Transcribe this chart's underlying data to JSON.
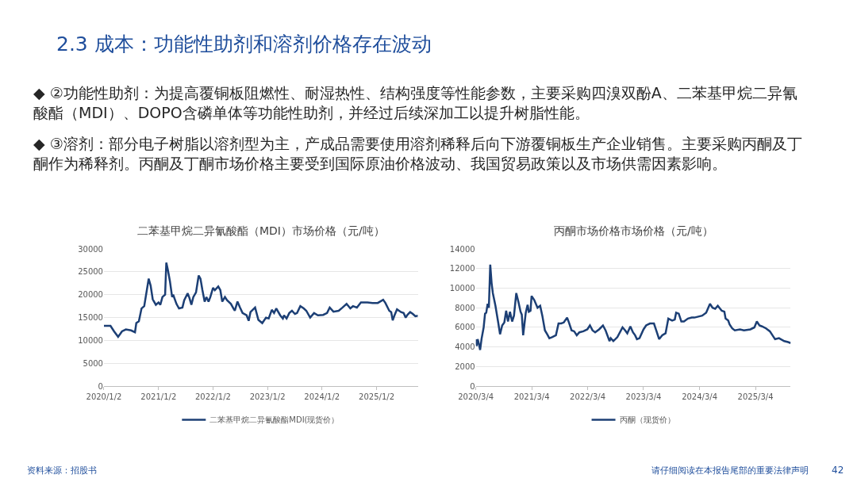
{
  "chart_data": [
    {
      "type": "other",
      "title": "2.3 成本：功能性助剂和溶剂价格存在波动",
      "annotations": [
        "◆ ②功能性助剂：为提高覆铜板阻燃性、耐湿热性、结构强度等性能参数，主要采购四溴双酚A、二苯基甲烷二异氰酸酯（MDI）、DOPO含磷单体等功能性助剂，并经过后续深加工以提升树脂性能。",
        "◆ ③溶剂：部分电子树脂以溶剂型为主，产成品需要使用溶剂稀释后向下游覆铜板生产企业销售。主要采购丙酮及丁酮作为稀释剂。丙酮及丁酮市场价格主要受到国际原油价格波动、我国贸易政策以及市场供需因素影响。",
        "资料来源：招股书",
        "请仔细阅读在本报告尾部的重要法律声明",
        "42"
      ]
    },
    {
      "type": "line",
      "title": "二苯基甲烷二异氰酸酯（MDI）市场价格（元/吨）",
      "legend": "bottom",
      "grid": "y",
      "marker": "none",
      "line_style": "solid",
      "xlim": [
        "2020-01-02",
        "2025-10-06"
      ],
      "ylim": [
        0,
        30000
      ],
      "xticks": [
        {
          "value": "2020-01-02",
          "label": "2020/1/2"
        },
        {
          "value": "2021-01-02",
          "label": "2021/1/2"
        },
        {
          "value": "2022-01-02",
          "label": "2022/1/2"
        },
        {
          "value": "2023-01-02",
          "label": "2023/1/2"
        },
        {
          "value": "2024-01-02",
          "label": "2024/1/2"
        },
        {
          "value": "2025-01-02",
          "label": "2025/1/2"
        }
      ],
      "yticks": [
        0,
        5000,
        10000,
        15000,
        20000,
        25000,
        30000
      ],
      "series": [
        {
          "name": "二苯基甲烷二异氰酸酯MDI(现货价）",
          "color": "#1c3f75",
          "x": [
            "2020-01-02",
            "2020-02-15",
            "2020-03-10",
            "2020-04-06",
            "2020-05-02",
            "2020-05-28",
            "2020-07-02",
            "2020-07-28",
            "2020-08-06",
            "2020-08-23",
            "2020-09-10",
            "2020-09-28",
            "2020-10-28",
            "2020-11-10",
            "2020-11-24",
            "2020-12-15",
            "2021-01-02",
            "2021-01-14",
            "2021-01-28",
            "2021-02-15",
            "2021-02-23",
            "2021-03-05",
            "2021-03-19",
            "2021-04-03",
            "2021-04-10",
            "2021-05-02",
            "2021-05-19",
            "2021-06-11",
            "2021-06-23",
            "2021-07-16",
            "2021-07-28",
            "2021-08-10",
            "2021-08-23",
            "2021-09-10",
            "2021-09-28",
            "2021-10-10",
            "2021-10-23",
            "2021-11-07",
            "2021-11-19",
            "2021-12-03",
            "2021-12-15",
            "2022-01-02",
            "2022-01-14",
            "2022-02-06",
            "2022-02-20",
            "2022-03-05",
            "2022-03-23",
            "2022-04-06",
            "2022-05-02",
            "2022-05-19",
            "2022-05-28",
            "2022-06-15",
            "2022-07-02",
            "2022-07-19",
            "2022-08-15",
            "2022-08-29",
            "2022-09-10",
            "2022-10-11",
            "2022-11-02",
            "2022-11-28",
            "2022-12-23",
            "2023-01-10",
            "2023-01-31",
            "2023-02-15",
            "2023-03-02",
            "2023-03-28",
            "2023-04-15",
            "2023-04-23",
            "2023-05-10",
            "2023-05-28",
            "2023-06-15",
            "2023-07-05",
            "2023-07-19",
            "2023-08-10",
            "2023-09-02",
            "2023-09-19",
            "2023-10-15",
            "2023-11-10",
            "2023-12-06",
            "2024-01-10",
            "2024-02-05",
            "2024-02-23",
            "2024-03-19",
            "2024-04-23",
            "2024-05-19",
            "2024-06-15",
            "2024-07-10",
            "2024-07-28",
            "2024-08-23",
            "2024-09-19",
            "2024-11-02",
            "2024-12-06",
            "2025-01-10",
            "2025-02-15",
            "2025-03-02",
            "2025-03-28",
            "2025-04-10",
            "2025-04-20",
            "2025-05-02",
            "2025-05-19",
            "2025-06-15",
            "2025-07-02",
            "2025-07-16",
            "2025-07-28",
            "2025-08-15",
            "2025-09-02",
            "2025-09-19",
            "2025-10-06"
          ],
          "values": [
            13200,
            13200,
            12000,
            10800,
            12000,
            12400,
            12200,
            11800,
            13800,
            14200,
            17000,
            17500,
            23500,
            22000,
            19000,
            17800,
            18300,
            17800,
            19500,
            20000,
            27000,
            25500,
            23000,
            19500,
            20000,
            18000,
            17000,
            17200,
            18800,
            20300,
            19300,
            17800,
            19500,
            20500,
            24200,
            23500,
            21000,
            18500,
            19500,
            18500,
            19500,
            21500,
            21000,
            21800,
            21000,
            18500,
            19500,
            18800,
            18000,
            17000,
            16500,
            18500,
            17200,
            16000,
            15500,
            14300,
            16200,
            17200,
            14500,
            13800,
            15000,
            14800,
            16700,
            16000,
            17000,
            15500,
            14800,
            15500,
            14800,
            16000,
            16500,
            15800,
            16000,
            17500,
            17000,
            16500,
            15000,
            16000,
            15500,
            15600,
            16000,
            17200,
            16300,
            16500,
            17200,
            18000,
            17000,
            17500,
            17200,
            18300,
            18300,
            18200,
            18200,
            18900,
            18200,
            16500,
            16200,
            14400,
            15500,
            16800,
            16200,
            16000,
            15000,
            15600,
            16200,
            15800,
            15300,
            15400
          ]
        }
      ]
    },
    {
      "type": "line",
      "title": "丙酮市场价格市场价格（元/吨）",
      "legend": "bottom",
      "grid": "y",
      "marker": "none",
      "line_style": "solid",
      "xlim": [
        "2020-03-04",
        "2025-10-20"
      ],
      "ylim": [
        0,
        14000
      ],
      "xticks": [
        {
          "value": "2020-03-04",
          "label": "2020/3/4"
        },
        {
          "value": "2021-03-04",
          "label": "2021/3/4"
        },
        {
          "value": "2022-03-04",
          "label": "2022/3/4"
        },
        {
          "value": "2023-03-04",
          "label": "2023/3/4"
        },
        {
          "value": "2024-03-04",
          "label": "2024/3/4"
        },
        {
          "value": "2025-03-04",
          "label": "2025/3/4"
        }
      ],
      "yticks": [
        0,
        2000,
        4000,
        6000,
        8000,
        10000,
        12000,
        14000
      ],
      "series": [
        {
          "name": "丙酮（现货价）",
          "color": "#1c3f75",
          "x": [
            "2020-03-04",
            "2020-03-09",
            "2020-03-16",
            "2020-03-24",
            "2020-04-01",
            "2020-04-10",
            "2020-04-24",
            "2020-05-03",
            "2020-05-11",
            "2020-05-20",
            "2020-05-28",
            "2020-06-06",
            "2020-06-15",
            "2020-06-23",
            "2020-07-10",
            "2020-07-28",
            "2020-08-09",
            "2020-08-23",
            "2020-09-06",
            "2020-09-18",
            "2020-09-30",
            "2020-10-13",
            "2020-10-27",
            "2020-11-08",
            "2020-11-23",
            "2020-12-07",
            "2020-12-21",
            "2020-12-29",
            "2021-01-07",
            "2021-01-24",
            "2021-02-05",
            "2021-02-13",
            "2021-02-24",
            "2021-03-03",
            "2021-03-20",
            "2021-04-11",
            "2021-04-28",
            "2021-05-12",
            "2021-05-29",
            "2021-06-13",
            "2021-06-27",
            "2021-07-14",
            "2021-08-09",
            "2021-08-26",
            "2021-09-12",
            "2021-09-29",
            "2021-10-21",
            "2021-11-02",
            "2021-11-19",
            "2021-12-06",
            "2021-12-23",
            "2022-01-09",
            "2022-02-04",
            "2022-03-02",
            "2022-03-19",
            "2022-04-05",
            "2022-04-22",
            "2022-05-18",
            "2022-06-12",
            "2022-06-29",
            "2022-07-25",
            "2022-08-02",
            "2022-08-19",
            "2022-09-14",
            "2022-10-18",
            "2022-11-04",
            "2022-11-18",
            "2022-12-08",
            "2022-12-25",
            "2023-01-08",
            "2023-01-20",
            "2023-02-06",
            "2023-03-04",
            "2023-03-21",
            "2023-04-15",
            "2023-05-11",
            "2023-05-28",
            "2023-06-14",
            "2023-07-04",
            "2023-07-26",
            "2023-08-13",
            "2023-09-07",
            "2023-09-24",
            "2023-10-03",
            "2023-10-20",
            "2023-11-06",
            "2023-11-23",
            "2023-12-19",
            "2024-01-13",
            "2024-01-30",
            "2024-02-25",
            "2024-03-21",
            "2024-04-16",
            "2024-05-11",
            "2024-05-28",
            "2024-06-14",
            "2024-07-01",
            "2024-07-27",
            "2024-08-13",
            "2024-08-21",
            "2024-09-07",
            "2024-09-16",
            "2024-10-03",
            "2024-10-20",
            "2024-11-23",
            "2024-12-19",
            "2025-01-30",
            "2025-02-25",
            "2025-03-13",
            "2025-03-30",
            "2025-04-16",
            "2025-05-12",
            "2025-06-06",
            "2025-06-23",
            "2025-07-10",
            "2025-08-05",
            "2025-09-08",
            "2025-10-03",
            "2025-10-20"
          ],
          "values": [
            4800,
            4100,
            4800,
            4300,
            3700,
            4800,
            6000,
            7400,
            7500,
            8400,
            8000,
            12400,
            10500,
            9500,
            8200,
            6500,
            5300,
            6200,
            6500,
            7700,
            6600,
            7600,
            6600,
            7200,
            9500,
            8600,
            7600,
            7300,
            5200,
            7500,
            8300,
            7600,
            7700,
            9200,
            8800,
            8000,
            8200,
            7200,
            5700,
            5300,
            4900,
            5000,
            5200,
            6400,
            6400,
            6500,
            7000,
            6500,
            5700,
            5600,
            5200,
            5500,
            5600,
            5800,
            6200,
            5700,
            5500,
            5800,
            6200,
            5700,
            4600,
            4900,
            4600,
            5000,
            6000,
            5700,
            5400,
            6100,
            5500,
            5200,
            4800,
            4900,
            5800,
            6200,
            6400,
            6400,
            5600,
            4800,
            5200,
            5400,
            6900,
            6700,
            6800,
            7500,
            7400,
            6600,
            6600,
            6900,
            7000,
            7000,
            7100,
            7200,
            7500,
            8400,
            8000,
            7900,
            8200,
            7700,
            7600,
            6900,
            6700,
            6300,
            5900,
            5700,
            5800,
            5700,
            5800,
            6000,
            6600,
            6200,
            6100,
            5900,
            5600,
            5200,
            4800,
            4900,
            4600,
            4500,
            4400
          ]
        }
      ]
    }
  ]
}
